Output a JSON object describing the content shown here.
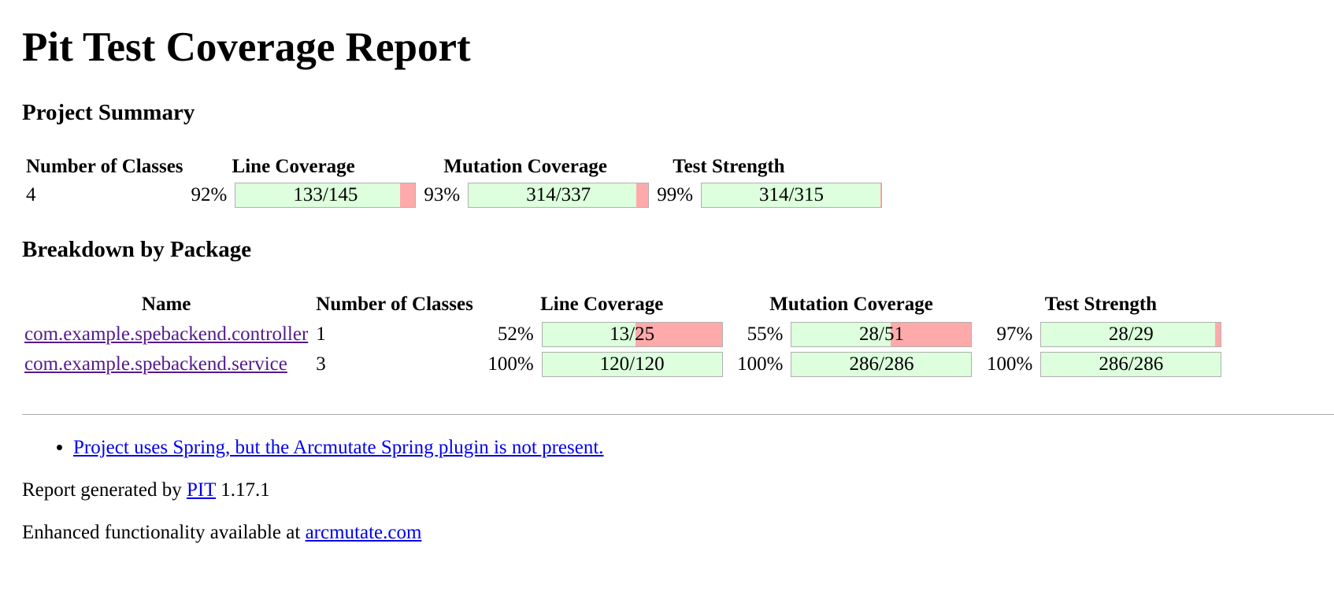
{
  "title": "Pit Test Coverage Report",
  "summary": {
    "heading": "Project Summary",
    "columns": {
      "classes": "Number of Classes",
      "line": "Line Coverage",
      "mutation": "Mutation Coverage",
      "strength": "Test Strength"
    },
    "classes": "4",
    "line": {
      "pct": "92%",
      "label": "133/145",
      "fraction": 0.917
    },
    "mutation": {
      "pct": "93%",
      "label": "314/337",
      "fraction": 0.932
    },
    "strength": {
      "pct": "99%",
      "label": "314/315",
      "fraction": 0.997
    }
  },
  "breakdown": {
    "heading": "Breakdown by Package",
    "columns": {
      "name": "Name",
      "classes": "Number of Classes",
      "line": "Line Coverage",
      "mutation": "Mutation Coverage",
      "strength": "Test Strength"
    },
    "rows": [
      {
        "name": "com.example.spebackend.controller",
        "classes": "1",
        "line": {
          "pct": "52%",
          "label": "13/25",
          "fraction": 0.52
        },
        "mutation": {
          "pct": "55%",
          "label": "28/51",
          "fraction": 0.55
        },
        "strength": {
          "pct": "97%",
          "label": "28/29",
          "fraction": 0.97
        }
      },
      {
        "name": "com.example.spebackend.service",
        "classes": "3",
        "line": {
          "pct": "100%",
          "label": "120/120",
          "fraction": 1.0
        },
        "mutation": {
          "pct": "100%",
          "label": "286/286",
          "fraction": 1.0
        },
        "strength": {
          "pct": "100%",
          "label": "286/286",
          "fraction": 1.0
        }
      }
    ]
  },
  "notes": [
    "Project uses Spring, but the Arcmutate Spring plugin is not present."
  ],
  "footer": {
    "generated_prefix": "Report generated by ",
    "generated_link": "PIT",
    "generated_version": " 1.17.1",
    "enhanced_prefix": "Enhanced functionality available at ",
    "enhanced_link": "arcmutate.com"
  },
  "colors": {
    "covered": "#ddffdd",
    "uncovered": "#ffaaaa",
    "link": "#0000ee",
    "visited": "#551a8b"
  }
}
